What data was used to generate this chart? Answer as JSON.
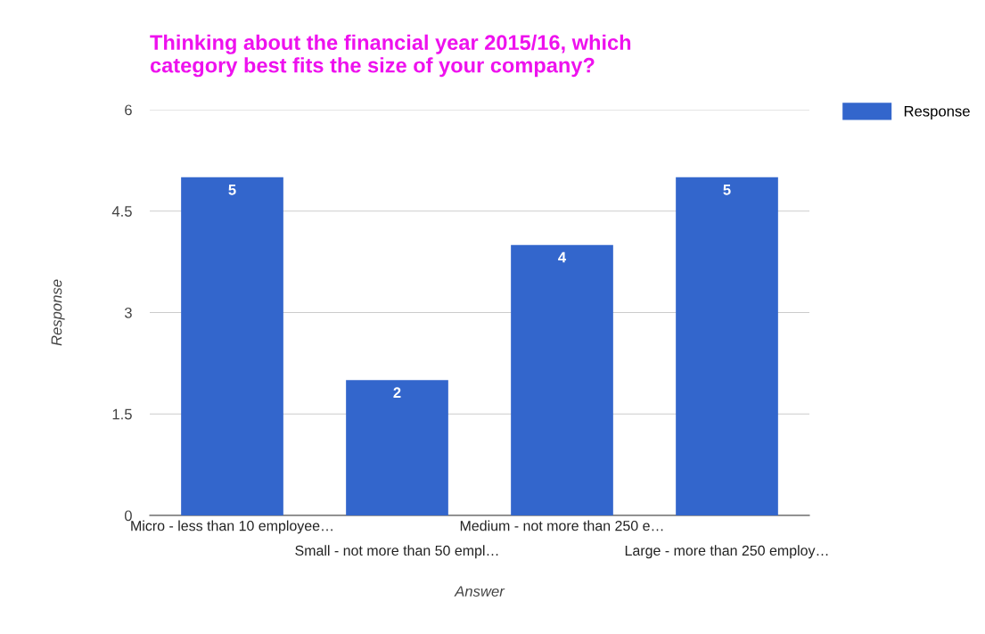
{
  "chart_data": {
    "type": "bar",
    "title": "Thinking about the financial year 2015/16, which\ncategory best fits the size of your company?",
    "xlabel": "Answer",
    "ylabel": "Response",
    "categories": [
      "Micro - less than 10 employee…",
      "Small - not more than 50 empl…",
      "Medium - not more than 250 e…",
      "Large - more than 250 employ…"
    ],
    "series": [
      {
        "name": "Response",
        "color": "#3366cc",
        "values": [
          5,
          2,
          4,
          5
        ]
      }
    ],
    "ylim": [
      0,
      6
    ],
    "yticks": [
      0,
      1.5,
      3,
      4.5,
      6
    ],
    "grid": "y",
    "legend": "top right",
    "data_labels": true
  }
}
